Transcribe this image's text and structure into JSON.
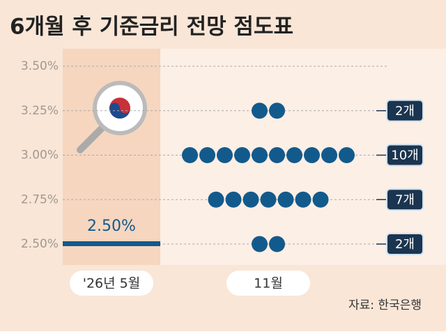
{
  "chart_data": {
    "type": "dot",
    "title": "6개월 후 기준금리 전망 점도표",
    "categories": [
      "'26년 5월",
      "11월"
    ],
    "current": {
      "value": 2.5,
      "label": "2.50%"
    },
    "levels": [
      3.25,
      3.0,
      2.75,
      2.5
    ],
    "counts": [
      2,
      10,
      7,
      2
    ],
    "value_labels": [
      "2개",
      "10개",
      "7개",
      "2개"
    ],
    "color": "#135a8c",
    "ylim": [
      2.5,
      3.5
    ],
    "yticks": [
      {
        "value": 3.5,
        "label": "3.50%"
      },
      {
        "value": 3.25,
        "label": "3.25%"
      },
      {
        "value": 3.0,
        "label": "3.00%"
      },
      {
        "value": 2.75,
        "label": "2.75%"
      },
      {
        "value": 2.5,
        "label": "2.50%"
      }
    ],
    "grid": true,
    "source": "자료: 한국은행"
  }
}
